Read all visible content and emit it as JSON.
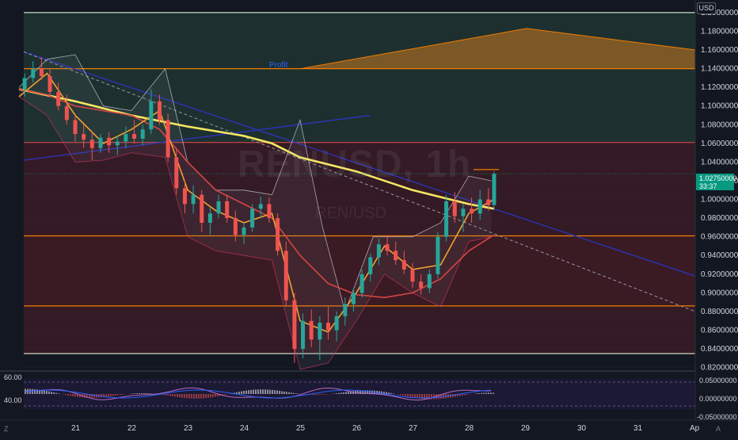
{
  "chart_data": {
    "type": "candlestick",
    "title": "RENUSD, 1h",
    "subtitle": "REN/USD",
    "currency": "USD",
    "x_labels": [
      "21",
      "22",
      "23",
      "24",
      "25",
      "26",
      "27",
      "28",
      "29",
      "30",
      "31",
      "Ap"
    ],
    "price_ticks": [
      "1.20000000",
      "1.18000000",
      "1.16000000",
      "1.14000000",
      "1.12000000",
      "1.10000000",
      "1.08000000",
      "1.06000000",
      "1.04000000",
      "1.02000000",
      "1.00000000",
      "0.98000000",
      "0.96000000",
      "0.94000000",
      "0.92000000",
      "0.90000000",
      "0.88000000",
      "0.86000000",
      "0.84000000",
      "0.82000000"
    ],
    "price_range": [
      0.818,
      1.205
    ],
    "last_price": "1.02750000",
    "countdown": "33:37",
    "candles": [
      [
        20.1,
        1.118,
        1.135,
        1.11,
        1.13
      ],
      [
        20.25,
        1.13,
        1.148,
        1.125,
        1.14
      ],
      [
        20.4,
        1.14,
        1.152,
        1.128,
        1.132
      ],
      [
        20.55,
        1.132,
        1.14,
        1.11,
        1.115
      ],
      [
        20.7,
        1.115,
        1.125,
        1.095,
        1.1
      ],
      [
        20.85,
        1.1,
        1.112,
        1.08,
        1.085
      ],
      [
        21.0,
        1.085,
        1.092,
        1.062,
        1.07
      ],
      [
        21.15,
        1.07,
        1.08,
        1.055,
        1.064
      ],
      [
        21.3,
        1.064,
        1.072,
        1.042,
        1.055
      ],
      [
        21.45,
        1.055,
        1.07,
        1.05,
        1.066
      ],
      [
        21.6,
        1.066,
        1.072,
        1.05,
        1.058
      ],
      [
        21.75,
        1.058,
        1.068,
        1.048,
        1.062
      ],
      [
        21.9,
        1.062,
        1.078,
        1.055,
        1.07
      ],
      [
        22.05,
        1.07,
        1.085,
        1.06,
        1.065
      ],
      [
        22.2,
        1.065,
        1.08,
        1.058,
        1.075
      ],
      [
        22.35,
        1.075,
        1.118,
        1.07,
        1.105
      ],
      [
        22.5,
        1.105,
        1.112,
        1.08,
        1.085
      ],
      [
        22.65,
        1.085,
        1.092,
        1.04,
        1.045
      ],
      [
        22.8,
        1.045,
        1.055,
        1.005,
        1.012
      ],
      [
        22.95,
        1.012,
        1.02,
        0.985,
        0.995
      ],
      [
        23.1,
        0.995,
        1.015,
        0.985,
        1.005
      ],
      [
        23.25,
        1.005,
        1.01,
        0.965,
        0.975
      ],
      [
        23.4,
        0.975,
        0.992,
        0.962,
        0.985
      ],
      [
        23.55,
        0.985,
        1.005,
        0.98,
        0.998
      ],
      [
        23.7,
        0.998,
        1.005,
        0.975,
        0.98
      ],
      [
        23.85,
        0.98,
        0.988,
        0.955,
        0.962
      ],
      [
        24.0,
        0.962,
        0.975,
        0.952,
        0.97
      ],
      [
        24.15,
        0.97,
        0.995,
        0.965,
        0.99
      ],
      [
        24.3,
        0.99,
        1.003,
        0.98,
        0.995
      ],
      [
        24.45,
        0.995,
        1.002,
        0.975,
        0.98
      ],
      [
        24.6,
        0.98,
        0.985,
        0.94,
        0.945
      ],
      [
        24.75,
        0.945,
        0.955,
        0.885,
        0.892
      ],
      [
        24.9,
        0.892,
        0.9,
        0.825,
        0.84
      ],
      [
        25.05,
        0.84,
        0.878,
        0.83,
        0.87
      ],
      [
        25.2,
        0.87,
        0.882,
        0.842,
        0.85
      ],
      [
        25.35,
        0.85,
        0.875,
        0.828,
        0.868
      ],
      [
        25.5,
        0.868,
        0.885,
        0.85,
        0.86
      ],
      [
        25.65,
        0.86,
        0.88,
        0.848,
        0.875
      ],
      [
        25.8,
        0.875,
        0.895,
        0.865,
        0.888
      ],
      [
        25.95,
        0.888,
        0.905,
        0.88,
        0.9
      ],
      [
        26.1,
        0.9,
        0.925,
        0.895,
        0.92
      ],
      [
        26.25,
        0.92,
        0.942,
        0.912,
        0.938
      ],
      [
        26.4,
        0.938,
        0.958,
        0.93,
        0.952
      ],
      [
        26.55,
        0.952,
        0.962,
        0.94,
        0.945
      ],
      [
        26.7,
        0.945,
        0.955,
        0.93,
        0.935
      ],
      [
        26.85,
        0.935,
        0.945,
        0.92,
        0.925
      ],
      [
        27.0,
        0.925,
        0.932,
        0.905,
        0.912
      ],
      [
        27.15,
        0.912,
        0.92,
        0.898,
        0.905
      ],
      [
        27.3,
        0.905,
        0.925,
        0.9,
        0.92
      ],
      [
        27.45,
        0.92,
        0.965,
        0.915,
        0.96
      ],
      [
        27.6,
        0.96,
        1.005,
        0.955,
        0.998
      ],
      [
        27.75,
        0.998,
        1.008,
        0.975,
        0.982
      ],
      [
        27.9,
        0.982,
        0.995,
        0.965,
        0.99
      ],
      [
        28.05,
        0.99,
        1.002,
        0.975,
        0.985
      ],
      [
        28.2,
        0.985,
        1.01,
        0.978,
        1.0
      ],
      [
        28.35,
        1.0,
        1.012,
        0.988,
        0.994
      ],
      [
        28.45,
        0.994,
        1.03,
        0.99,
        1.0275
      ]
    ],
    "moving_averages": [
      {
        "color": "#f5e663",
        "points": [
          [
            20.0,
            1.118
          ],
          [
            21.0,
            1.105
          ],
          [
            22.0,
            1.09
          ],
          [
            23.0,
            1.078
          ],
          [
            24.0,
            1.068
          ],
          [
            24.5,
            1.06
          ],
          [
            25.0,
            1.045
          ],
          [
            26.0,
            1.03
          ],
          [
            27.0,
            1.01
          ],
          [
            28.0,
            0.995
          ],
          [
            28.45,
            0.99
          ]
        ]
      },
      {
        "color": "#d64545",
        "points": [
          [
            20.0,
            1.118
          ],
          [
            20.5,
            1.112
          ],
          [
            21.0,
            1.1
          ],
          [
            22.0,
            1.09
          ],
          [
            22.5,
            1.075
          ],
          [
            23.0,
            1.04
          ],
          [
            23.5,
            1.01
          ],
          [
            24.0,
            0.995
          ],
          [
            24.5,
            0.98
          ],
          [
            25.0,
            0.94
          ],
          [
            25.5,
            0.91
          ],
          [
            26.0,
            0.898
          ],
          [
            26.5,
            0.895
          ],
          [
            27.0,
            0.9
          ],
          [
            27.5,
            0.915
          ],
          [
            28.0,
            0.945
          ],
          [
            28.45,
            0.962
          ]
        ]
      },
      {
        "color": "#f0a030",
        "points": [
          [
            20.0,
            1.11
          ],
          [
            20.5,
            1.135
          ],
          [
            21.0,
            1.09
          ],
          [
            21.5,
            1.06
          ],
          [
            22.0,
            1.075
          ],
          [
            22.5,
            1.095
          ],
          [
            23.0,
            1.01
          ],
          [
            23.5,
            0.988
          ],
          [
            24.0,
            0.975
          ],
          [
            24.5,
            0.985
          ],
          [
            25.0,
            0.87
          ],
          [
            25.5,
            0.858
          ],
          [
            26.0,
            0.9
          ],
          [
            26.5,
            0.95
          ],
          [
            27.0,
            0.925
          ],
          [
            27.5,
            0.93
          ],
          [
            28.0,
            0.985
          ],
          [
            28.45,
            1.0
          ]
        ]
      }
    ],
    "levels": [
      {
        "price": 1.2,
        "color": "#c9d8c5"
      },
      {
        "price": 1.14,
        "color": "#f57c00"
      },
      {
        "price": 1.061,
        "color": "#d64545"
      },
      {
        "price": 0.961,
        "color": "#f57c00"
      },
      {
        "price": 0.886,
        "color": "#f57c00"
      },
      {
        "price": 0.835,
        "color": "#c9d8c5"
      }
    ],
    "annotations": {
      "profit_label": "Profit",
      "oscillator_ticks": [
        "60.00",
        "40.00"
      ],
      "oscillator_right_ticks": [
        "0.05000000",
        "0.00000000",
        "-0.05000000"
      ]
    }
  },
  "ui": {
    "usd_badge": "USD",
    "corner_left": "Z",
    "corner_right": "A"
  }
}
